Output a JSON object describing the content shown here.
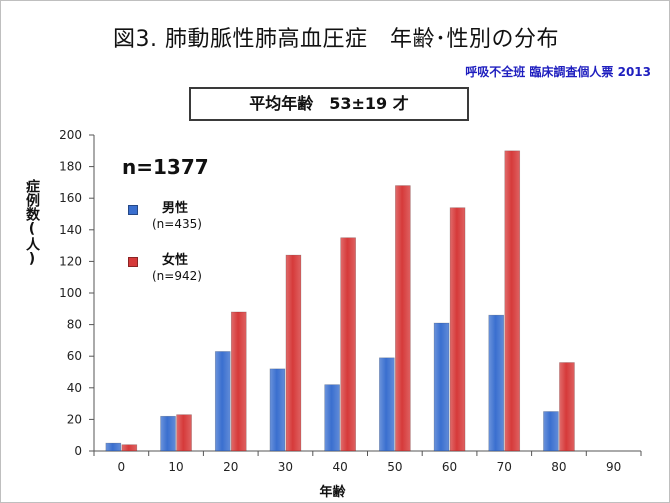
{
  "title": "図3. 肺動脈性肺高血圧症　年齢･性別の分布",
  "source": "呼吸不全班 臨床調査個人票 2013",
  "average_label": "平均年齢　53±19 才",
  "total_n": "n=1377",
  "legend": [
    {
      "name": "男性",
      "count": "(n=435)",
      "color": "#3a6fcf"
    },
    {
      "name": "女性",
      "count": "(n=942)",
      "color": "#d63a3a"
    }
  ],
  "colors": {
    "male": "#3a6fcf",
    "female": "#d63a3a",
    "axis": "#555555"
  },
  "chart_data": {
    "type": "bar",
    "title": "図3. 肺動脈性肺高血圧症　年齢･性別の分布",
    "xlabel": "年齢",
    "ylabel": "症例数(人)",
    "ylim": [
      0,
      200
    ],
    "yticks": [
      0,
      20,
      40,
      60,
      80,
      100,
      120,
      140,
      160,
      180,
      200
    ],
    "categories": [
      "0",
      "10",
      "20",
      "30",
      "40",
      "50",
      "60",
      "70",
      "80",
      "90"
    ],
    "series": [
      {
        "name": "男性",
        "values": [
          5,
          22,
          63,
          52,
          42,
          59,
          81,
          86,
          25,
          0
        ]
      },
      {
        "name": "女性",
        "values": [
          4,
          23,
          88,
          124,
          135,
          168,
          154,
          190,
          56,
          0
        ]
      }
    ],
    "grid": false,
    "legend_position": "top-left"
  }
}
